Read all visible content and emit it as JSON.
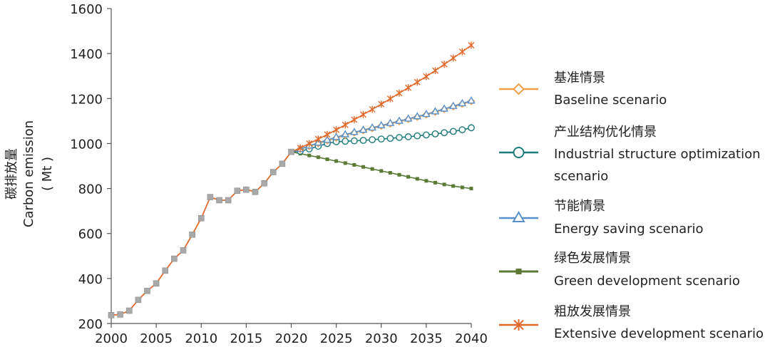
{
  "chart_data": {
    "type": "line",
    "title": "",
    "xlabel": "",
    "ylabel_lines": [
      "碳排放量",
      "Carbon emission",
      "( Mt )"
    ],
    "xlim": [
      2000,
      2040
    ],
    "ylim": [
      200,
      1600
    ],
    "xticks": [
      2000,
      2005,
      2010,
      2015,
      2020,
      2025,
      2030,
      2035,
      2040
    ],
    "yticks": [
      200,
      400,
      600,
      800,
      1000,
      1200,
      1400,
      1600
    ],
    "grid": false,
    "legend_position": "right",
    "historical": {
      "x": [
        2000,
        2001,
        2002,
        2003,
        2004,
        2005,
        2006,
        2007,
        2008,
        2009,
        2010,
        2011,
        2012,
        2013,
        2014,
        2015,
        2016,
        2017,
        2018,
        2019,
        2020
      ],
      "values": [
        237,
        240,
        257,
        305,
        345,
        378,
        435,
        488,
        525,
        595,
        668,
        762,
        748,
        748,
        790,
        795,
        785,
        823,
        873,
        910,
        963
      ]
    },
    "series": [
      {
        "key": "baseline",
        "name_zh": "基准情景",
        "name_en": "Baseline scenario",
        "color": "#f0a04b",
        "marker": "diamond",
        "x": [
          2020,
          2021,
          2022,
          2023,
          2024,
          2025,
          2026,
          2027,
          2028,
          2029,
          2030,
          2031,
          2032,
          2033,
          2034,
          2035,
          2036,
          2037,
          2038,
          2039,
          2040
        ],
        "values": [
          963,
          975,
          988,
          1000,
          1013,
          1025,
          1037,
          1048,
          1058,
          1068,
          1078,
          1088,
          1098,
          1108,
          1118,
          1128,
          1140,
          1152,
          1164,
          1176,
          1188
        ]
      },
      {
        "key": "industrial",
        "name_zh": "产业结构优化情景",
        "name_en_lines": [
          "Industrial structure optimization",
          "scenario"
        ],
        "color": "#1f7a7a",
        "marker": "circle",
        "x": [
          2020,
          2021,
          2022,
          2023,
          2024,
          2025,
          2026,
          2027,
          2028,
          2029,
          2030,
          2031,
          2032,
          2033,
          2034,
          2035,
          2036,
          2037,
          2038,
          2039,
          2040
        ],
        "values": [
          963,
          966,
          976,
          988,
          1000,
          1008,
          1010,
          1012,
          1014,
          1017,
          1020,
          1023,
          1027,
          1030,
          1034,
          1038,
          1043,
          1048,
          1054,
          1061,
          1070
        ]
      },
      {
        "key": "energy",
        "name_zh": "节能情景",
        "name_en": "Energy saving scenario",
        "color": "#5b8fc7",
        "marker": "triangle",
        "x": [
          2020,
          2021,
          2022,
          2023,
          2024,
          2025,
          2026,
          2027,
          2028,
          2029,
          2030,
          2031,
          2032,
          2033,
          2034,
          2035,
          2036,
          2037,
          2038,
          2039,
          2040
        ],
        "values": [
          963,
          975,
          990,
          1003,
          1016,
          1028,
          1040,
          1050,
          1060,
          1070,
          1080,
          1090,
          1100,
          1110,
          1120,
          1130,
          1142,
          1154,
          1166,
          1178,
          1190
        ]
      },
      {
        "key": "green",
        "name_zh": "绿色发展情景",
        "name_en": "Green development scenario",
        "color": "#5a7a35",
        "marker": "square",
        "x": [
          2020,
          2021,
          2022,
          2023,
          2024,
          2025,
          2026,
          2027,
          2028,
          2029,
          2030,
          2031,
          2032,
          2033,
          2034,
          2035,
          2036,
          2037,
          2038,
          2039,
          2040
        ],
        "values": [
          963,
          955,
          947,
          939,
          930,
          922,
          913,
          905,
          896,
          887,
          878,
          870,
          861,
          852,
          843,
          834,
          826,
          818,
          811,
          805,
          800
        ]
      },
      {
        "key": "extensive",
        "name_zh": "粗放发展情景",
        "name_en": "Extensive development scenario",
        "color": "#e06a2c",
        "marker": "asterisk",
        "x": [
          2020,
          2021,
          2022,
          2023,
          2024,
          2025,
          2026,
          2027,
          2028,
          2029,
          2030,
          2031,
          2032,
          2033,
          2034,
          2035,
          2036,
          2037,
          2038,
          2039,
          2040
        ],
        "values": [
          963,
          980,
          1000,
          1020,
          1040,
          1061,
          1083,
          1106,
          1129,
          1152,
          1175,
          1199,
          1224,
          1248,
          1273,
          1298,
          1324,
          1352,
          1380,
          1408,
          1437
        ]
      }
    ],
    "historical_color": "#e06a2c",
    "historical_marker_color": "#a9a9a9"
  }
}
